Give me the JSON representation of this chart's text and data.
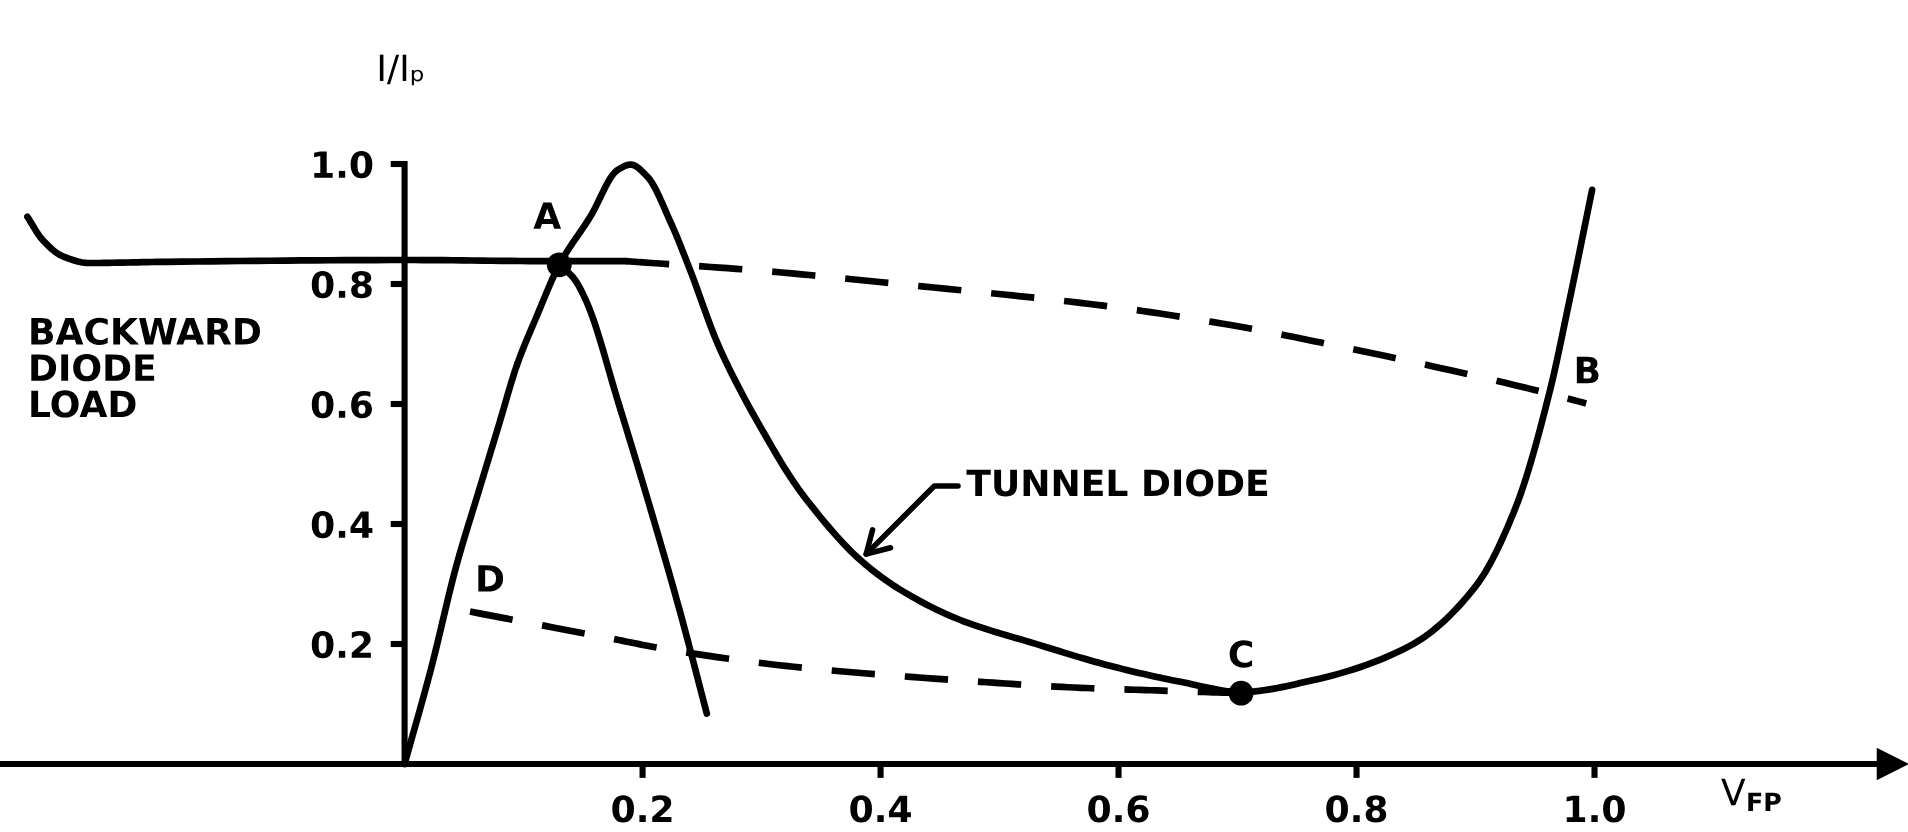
{
  "chart_data": {
    "type": "line",
    "xlabel": "V$_{FP}$",
    "ylabel": "I/Iₚ",
    "xlim": [
      -0.34,
      1.25
    ],
    "ylim": [
      0,
      1.0
    ],
    "xticks": [
      0.2,
      0.4,
      0.6,
      0.8,
      {
        "value": 1.0,
        "label": "1.0"
      }
    ],
    "yticks": [
      0.2,
      0.4,
      0.6,
      0.8,
      {
        "value": 1.0,
        "label": "1.0"
      }
    ],
    "series": [
      {
        "color": "#000000",
        "line_style": "solid",
        "x": [
          0,
          0.022,
          0.044,
          0.061,
          0.078,
          0.095,
          0.111,
          0.13,
          0.156,
          0.179,
          0.19,
          0.204,
          0.224,
          0.24,
          0.263,
          0.285,
          0.299,
          0.324,
          0.338,
          0.383,
          0.417,
          0.467,
          0.529,
          0.596,
          0.652,
          0.703,
          0.764,
          0.844,
          0.9,
          0.934,
          0.962,
          0.979,
          0.998
        ],
        "values": [
          0,
          0.157,
          0.334,
          0.446,
          0.557,
          0.668,
          0.746,
          0.832,
          0.912,
          0.99,
          0.999,
          0.979,
          0.901,
          0.823,
          0.701,
          0.612,
          0.562,
          0.479,
          0.44,
          0.34,
          0.29,
          0.24,
          0.201,
          0.162,
          0.137,
          0.12,
          0.14,
          0.196,
          0.296,
          0.429,
          0.618,
          0.773,
          0.957
        ]
      },
      {
        "color": "#000000",
        "line_style": "solid",
        "x": [
          -0.317,
          -0.304,
          -0.287,
          -0.265,
          -0.2,
          0,
          0.13,
          0.186
        ],
        "values": [
          0.912,
          0.873,
          0.846,
          0.835,
          0.837,
          0.84,
          0.838,
          0.838
        ]
      },
      {
        "color": "#000000",
        "line_style": "dashed",
        "x": [
          0.186,
          0.3,
          0.435,
          0.587,
          0.693,
          0.788,
          0.934,
          0.993
        ],
        "values": [
          0.838,
          0.822,
          0.796,
          0.764,
          0.732,
          0.695,
          0.631,
          0.601
        ]
      },
      {
        "color": "#000000",
        "line_style": "solid",
        "x": [
          0.13,
          0.142,
          0.153,
          0.18,
          0.207,
          0.232,
          0.254
        ],
        "values": [
          0.832,
          0.81,
          0.77,
          0.6,
          0.423,
          0.25,
          0.084
        ]
      },
      {
        "color": "#000000",
        "line_style": "dashed",
        "x": [
          0.055,
          0.179,
          0.215,
          0.327,
          0.484,
          0.568,
          0.641,
          0.703
        ],
        "values": [
          0.254,
          0.207,
          0.193,
          0.162,
          0.137,
          0.127,
          0.122,
          0.118
        ]
      },
      {
        "type": "scatter",
        "marker": "circle",
        "color": "#000000",
        "x": [
          0.13,
          0.703
        ],
        "values": [
          0.832,
          0.118
        ]
      }
    ],
    "annotations": [
      {
        "text": "A",
        "x": 0.13,
        "y": 0.832
      },
      {
        "text": "B",
        "x": 0.962,
        "y": 0.618
      },
      {
        "text": "C",
        "x": 0.703,
        "y": 0.118
      },
      {
        "text": "D",
        "x": 0.055,
        "y": 0.254
      },
      {
        "text": "TUNNEL DIODE",
        "x": 0.383,
        "y": 0.34
      },
      "BACKWARD DIODE LOAD"
    ]
  }
}
